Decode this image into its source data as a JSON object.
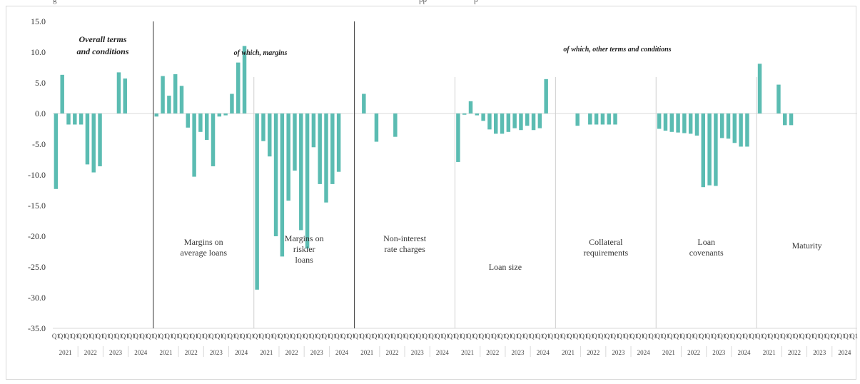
{
  "top_strip": {
    "left_text": "g",
    "middle_text": "pp",
    "right_text": "p"
  },
  "chart_data": {
    "type": "bar",
    "ylim": [
      -35,
      15
    ],
    "y_ticks": [
      "15.0",
      "10.0",
      "5.0",
      "0.0",
      "-5.0",
      "-10.0",
      "-15.0",
      "-20.0",
      "-25.0",
      "-30.0",
      "-35.0"
    ],
    "x_tick_label": "Q1",
    "years": [
      "2021",
      "2022",
      "2023",
      "2024"
    ],
    "grid": false,
    "bar_color": "#5bbcb2",
    "overall_title": [
      "Overall terms",
      "and conditions"
    ],
    "group_headings": [
      "of which, margins",
      "of which, other terms and conditions"
    ],
    "series": [
      {
        "label": [],
        "values": [
          -12.3,
          6.3,
          -1.8,
          -1.8,
          -1.8,
          -8.3,
          -9.6,
          -8.6,
          0,
          0,
          6.7,
          5.7
        ]
      },
      {
        "label": [
          "Margins on",
          "average loans"
        ],
        "values": [
          -0.5,
          6.1,
          2.9,
          6.4,
          4.5,
          -2.3,
          -10.3,
          -3.0,
          -4.3,
          -8.6,
          -0.5,
          -0.3,
          3.2,
          8.3,
          11.0
        ]
      },
      {
        "label": [
          "Margins on",
          "riskier",
          "loans"
        ],
        "values": [
          -28.7,
          -4.5,
          -7.0,
          -20.0,
          -23.3,
          -14.2,
          -9.3,
          -19.0,
          -22.0,
          -5.5,
          -11.5,
          -14.5,
          -11.5,
          -9.5
        ]
      },
      {
        "label": [
          "Non-interest",
          "rate charges"
        ],
        "values": [
          0,
          3.2,
          0,
          -4.6,
          0,
          0,
          -3.8,
          0,
          0,
          0,
          0,
          0,
          0,
          0
        ]
      },
      {
        "label": [
          "Loan size"
        ],
        "values": [
          -7.9,
          -0.2,
          2.0,
          -0.3,
          -1.2,
          -2.6,
          -3.3,
          -3.3,
          -3.0,
          -2.4,
          -2.7,
          -2.0,
          -2.7,
          -2.4,
          5.6
        ]
      },
      {
        "label": [
          "Collateral",
          "requirements"
        ],
        "values": [
          0,
          0,
          0,
          -2.0,
          0,
          -1.8,
          -1.8,
          -1.8,
          -1.8,
          -1.8,
          0,
          0,
          0,
          0
        ]
      },
      {
        "label": [
          "Loan",
          "covenants"
        ],
        "values": [
          -2.5,
          -2.8,
          -3.0,
          -3.1,
          -3.2,
          -3.3,
          -3.6,
          -12.0,
          -11.7,
          -11.8,
          -4.0,
          -4.1,
          -4.8,
          -5.4,
          -5.4
        ]
      },
      {
        "label": [
          "Maturity"
        ],
        "values": [
          8.1,
          0,
          0,
          4.7,
          -1.9,
          -1.9,
          0,
          0,
          0,
          0,
          0,
          0,
          0,
          0
        ]
      }
    ]
  }
}
